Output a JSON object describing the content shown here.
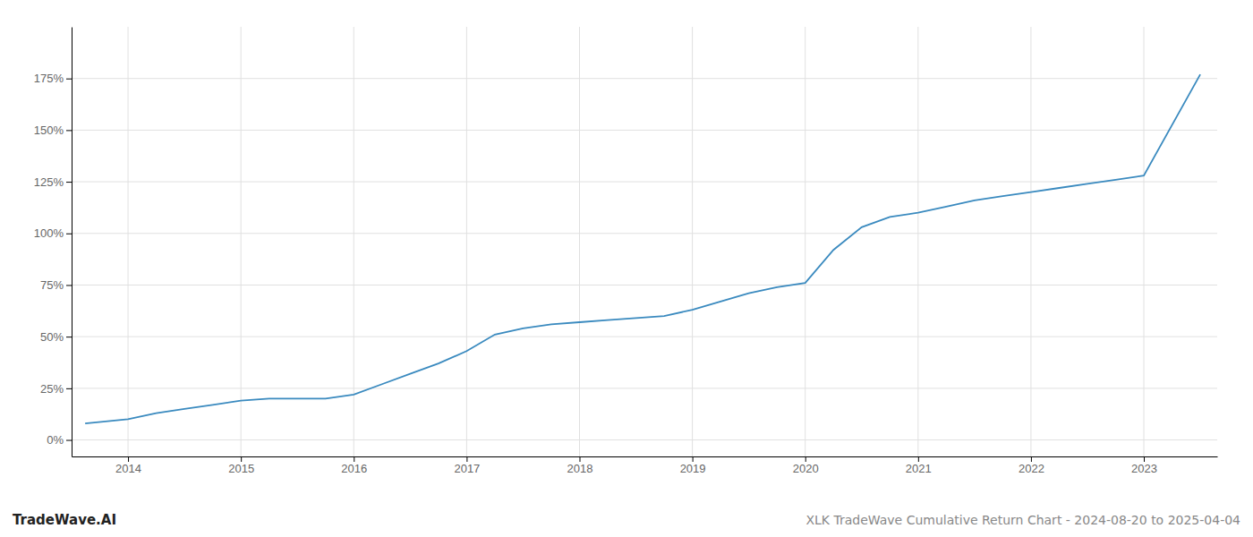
{
  "chart_data": {
    "type": "line",
    "title": "XLK TradeWave Cumulative Return Chart - 2024-08-20 to 2025-04-04",
    "annotations": [
      "TradeWave.AI"
    ],
    "x": [
      2013.62,
      2014.0,
      2014.25,
      2014.5,
      2014.75,
      2015.0,
      2015.25,
      2015.5,
      2015.75,
      2016.0,
      2016.25,
      2016.5,
      2016.75,
      2017.0,
      2017.25,
      2017.5,
      2017.75,
      2018.0,
      2018.25,
      2018.5,
      2018.75,
      2019.0,
      2019.25,
      2019.5,
      2019.75,
      2020.0,
      2020.25,
      2020.5,
      2020.75,
      2021.0,
      2021.25,
      2021.5,
      2021.75,
      2022.0,
      2022.25,
      2022.5,
      2022.75,
      2023.0,
      2023.5
    ],
    "values": [
      8,
      10,
      13,
      15,
      17,
      19,
      20,
      20,
      20,
      22,
      27,
      32,
      37,
      43,
      51,
      54,
      56,
      57,
      58,
      59,
      60,
      63,
      67,
      71,
      74,
      76,
      92,
      103,
      108,
      110,
      113,
      116,
      118,
      120,
      122,
      124,
      126,
      128,
      177
    ],
    "color": "#3a8abf",
    "xlim": [
      2013.5,
      2023.65
    ],
    "xticks": [
      2014,
      2015,
      2016,
      2017,
      2018,
      2019,
      2020,
      2021,
      2022,
      2023
    ],
    "ylim": [
      -8,
      200
    ],
    "yticks": [
      {
        "value": 0,
        "label": "0%"
      },
      {
        "value": 25,
        "label": "25%"
      },
      {
        "value": 50,
        "label": "50%"
      },
      {
        "value": 75,
        "label": "75%"
      },
      {
        "value": 100,
        "label": "100%"
      },
      {
        "value": 125,
        "label": "125%"
      },
      {
        "value": 150,
        "label": "150%"
      },
      {
        "value": 175,
        "label": "175%"
      }
    ],
    "grid": true
  }
}
